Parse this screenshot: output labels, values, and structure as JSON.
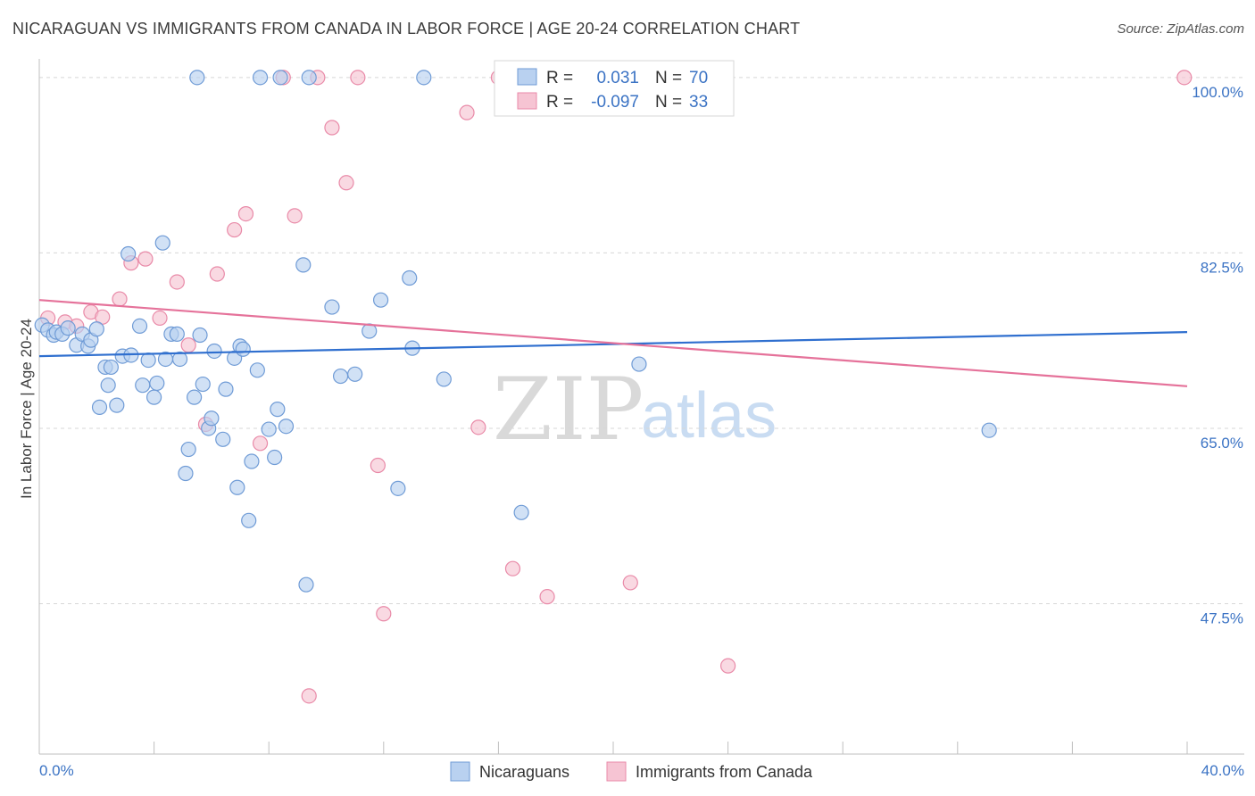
{
  "header": {
    "title": "NICARAGUAN VS IMMIGRANTS FROM CANADA IN LABOR FORCE | AGE 20-24 CORRELATION CHART",
    "source": "Source: ZipAtlas.com"
  },
  "legend": {
    "rows": [
      {
        "r_label": "R =",
        "r_value": "0.031",
        "n_label": "N =",
        "n_value": "70"
      },
      {
        "r_label": "R =",
        "r_value": "-0.097",
        "n_label": "N =",
        "n_value": "33"
      }
    ]
  },
  "watermark": {
    "zip": "ZIP",
    "atlas": "atlas"
  },
  "colors": {
    "blue_fill": "#b9d1f0",
    "blue_stroke": "#6f9bd6",
    "blue_line": "#2f6fcf",
    "pink_fill": "#f6c4d3",
    "pink_stroke": "#e98aa8",
    "pink_line": "#e5729a",
    "grid": "#d7d7d7",
    "axis_text": "#3b73c4"
  },
  "chart_data": {
    "type": "scatter",
    "title": "NICARAGUAN VS IMMIGRANTS FROM CANADA IN LABOR FORCE | AGE 20-24 CORRELATION CHART",
    "xlabel": "",
    "ylabel": "In Labor Force | Age 20-24",
    "xlim": [
      0,
      40
    ],
    "ylim": [
      32.5,
      101.5
    ],
    "x_tick_labels": [
      "0.0%",
      "40.0%"
    ],
    "y_ticks": [
      {
        "value": 100,
        "label": "100.0%"
      },
      {
        "value": 82.5,
        "label": "82.5%"
      },
      {
        "value": 65,
        "label": "65.0%"
      },
      {
        "value": 47.5,
        "label": "47.5%"
      }
    ],
    "grid": true,
    "legend_position": "top-center",
    "series": [
      {
        "name": "Nicaraguans",
        "color": "#6f9bd6",
        "trend": {
          "x": [
            0,
            40
          ],
          "y": [
            72.2,
            74.6
          ]
        },
        "points": [
          [
            0.1,
            75.3
          ],
          [
            0.3,
            74.8
          ],
          [
            0.5,
            74.3
          ],
          [
            0.6,
            74.6
          ],
          [
            0.8,
            74.4
          ],
          [
            1.0,
            75.0
          ],
          [
            1.3,
            73.3
          ],
          [
            1.5,
            74.4
          ],
          [
            1.7,
            73.2
          ],
          [
            1.8,
            73.8
          ],
          [
            2.0,
            74.9
          ],
          [
            2.1,
            67.1
          ],
          [
            2.3,
            71.1
          ],
          [
            2.4,
            69.3
          ],
          [
            2.5,
            71.1
          ],
          [
            2.7,
            67.3
          ],
          [
            2.9,
            72.2
          ],
          [
            3.1,
            82.4
          ],
          [
            3.2,
            72.3
          ],
          [
            3.5,
            75.2
          ],
          [
            3.6,
            69.3
          ],
          [
            3.8,
            71.8
          ],
          [
            4.0,
            68.1
          ],
          [
            4.1,
            69.5
          ],
          [
            4.3,
            83.5
          ],
          [
            4.4,
            71.9
          ],
          [
            4.6,
            74.4
          ],
          [
            4.8,
            74.4
          ],
          [
            4.9,
            71.9
          ],
          [
            5.1,
            60.5
          ],
          [
            5.2,
            62.9
          ],
          [
            5.4,
            68.1
          ],
          [
            5.6,
            74.3
          ],
          [
            5.7,
            69.4
          ],
          [
            5.9,
            65.0
          ],
          [
            6.0,
            66.0
          ],
          [
            6.1,
            72.7
          ],
          [
            6.4,
            63.9
          ],
          [
            6.5,
            68.9
          ],
          [
            6.8,
            72.0
          ],
          [
            6.9,
            59.1
          ],
          [
            7.0,
            73.2
          ],
          [
            7.1,
            72.9
          ],
          [
            7.3,
            55.8
          ],
          [
            7.4,
            61.7
          ],
          [
            7.6,
            70.8
          ],
          [
            8.0,
            64.9
          ],
          [
            8.2,
            62.1
          ],
          [
            8.3,
            66.9
          ],
          [
            8.6,
            65.2
          ],
          [
            9.2,
            81.3
          ],
          [
            9.3,
            49.4
          ],
          [
            9.4,
            100.0
          ],
          [
            10.2,
            77.1
          ],
          [
            10.5,
            70.2
          ],
          [
            11.0,
            70.4
          ],
          [
            11.5,
            74.7
          ],
          [
            11.9,
            77.8
          ],
          [
            12.5,
            59.0
          ],
          [
            12.9,
            80.0
          ],
          [
            13.0,
            73.0
          ],
          [
            13.4,
            100.0
          ],
          [
            14.1,
            69.9
          ],
          [
            16.8,
            56.6
          ],
          [
            20.1,
            100.0
          ],
          [
            20.9,
            71.4
          ],
          [
            33.1,
            64.8
          ],
          [
            5.5,
            100.0
          ],
          [
            7.7,
            100.0
          ],
          [
            8.4,
            100.0
          ]
        ]
      },
      {
        "name": "Immigrants from Canada",
        "color": "#e98aa8",
        "trend": {
          "x": [
            0,
            40
          ],
          "y": [
            77.8,
            69.2
          ]
        },
        "points": [
          [
            0.3,
            76.0
          ],
          [
            0.9,
            75.6
          ],
          [
            1.3,
            75.2
          ],
          [
            1.8,
            76.6
          ],
          [
            2.2,
            76.1
          ],
          [
            2.8,
            77.9
          ],
          [
            3.2,
            81.5
          ],
          [
            3.7,
            81.9
          ],
          [
            4.2,
            76.0
          ],
          [
            4.8,
            79.6
          ],
          [
            5.2,
            73.3
          ],
          [
            5.8,
            65.4
          ],
          [
            6.2,
            80.4
          ],
          [
            6.8,
            84.8
          ],
          [
            7.2,
            86.4
          ],
          [
            7.7,
            63.5
          ],
          [
            8.5,
            100.0
          ],
          [
            8.9,
            86.2
          ],
          [
            9.7,
            100.0
          ],
          [
            10.2,
            95.0
          ],
          [
            10.7,
            89.5
          ],
          [
            11.1,
            100.0
          ],
          [
            11.8,
            61.3
          ],
          [
            12.0,
            46.5
          ],
          [
            9.4,
            38.3
          ],
          [
            14.9,
            96.5
          ],
          [
            15.3,
            65.1
          ],
          [
            16.0,
            100.0
          ],
          [
            16.5,
            51.0
          ],
          [
            17.7,
            48.2
          ],
          [
            20.6,
            49.6
          ],
          [
            24.0,
            41.3
          ],
          [
            39.9,
            100.0
          ]
        ]
      }
    ]
  },
  "bottom_legend": {
    "items": [
      {
        "label": "Nicaraguans"
      },
      {
        "label": "Immigrants from Canada"
      }
    ]
  }
}
